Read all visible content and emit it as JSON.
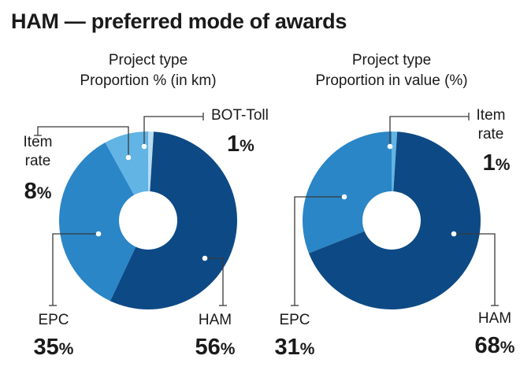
{
  "title": "HAM — preferred mode of awards",
  "colors": {
    "HAM": "#0d4a85",
    "EPC": "#2a86c6",
    "Item rate": "#61b4e4",
    "BOT-Toll": "#b9dcf3",
    "leader": "#3a3a3a",
    "text": "#1a1a1a",
    "background": "#ffffff"
  },
  "chart_data": [
    {
      "type": "pie",
      "donut": true,
      "title_line1": "Project type",
      "title_line2": "Proportion % (in km)",
      "slices": [
        {
          "label": "BOT-Toll",
          "value": 1,
          "value_text": "1",
          "unit": "%"
        },
        {
          "label": "HAM",
          "value": 56,
          "value_text": "56",
          "unit": "%"
        },
        {
          "label": "EPC",
          "value": 35,
          "value_text": "35",
          "unit": "%"
        },
        {
          "label": "Item rate",
          "label_lines": [
            "Item",
            "rate"
          ],
          "value": 8,
          "value_text": "8",
          "unit": "%"
        }
      ]
    },
    {
      "type": "pie",
      "donut": true,
      "title_line1": "Project type",
      "title_line2": "Proportion in value (%)",
      "slices": [
        {
          "label": "Item rate",
          "label_lines": [
            "Item",
            "rate"
          ],
          "value": 1,
          "value_text": "1",
          "unit": "%"
        },
        {
          "label": "HAM",
          "value": 68,
          "value_text": "68",
          "unit": "%"
        },
        {
          "label": "EPC",
          "value": 31,
          "value_text": "31",
          "unit": "%"
        }
      ]
    }
  ]
}
